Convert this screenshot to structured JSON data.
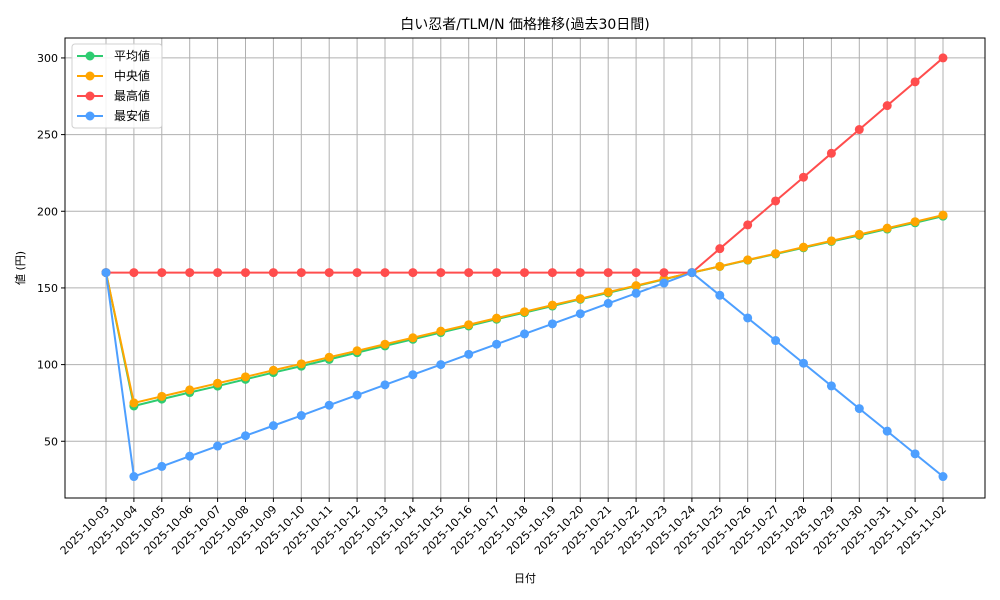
{
  "chart_data": {
    "type": "line",
    "title": "白い忍者/TLM/N 価格推移(過去30日間)",
    "xlabel": "日付",
    "ylabel": "値 (円)",
    "ylim": [
      13,
      313
    ],
    "yticks": [
      50,
      100,
      150,
      200,
      250,
      300
    ],
    "grid": true,
    "legend_position": "upper left",
    "categories": [
      "2025-10-03",
      "2025-10-04",
      "2025-10-05",
      "2025-10-06",
      "2025-10-07",
      "2025-10-08",
      "2025-10-09",
      "2025-10-10",
      "2025-10-11",
      "2025-10-12",
      "2025-10-13",
      "2025-10-14",
      "2025-10-15",
      "2025-10-16",
      "2025-10-17",
      "2025-10-18",
      "2025-10-19",
      "2025-10-20",
      "2025-10-21",
      "2025-10-22",
      "2025-10-23",
      "2025-10-24",
      "2025-10-25",
      "2025-10-26",
      "2025-10-27",
      "2025-10-28",
      "2025-10-29",
      "2025-10-30",
      "2025-10-31",
      "2025-11-01",
      "2025-11-02"
    ],
    "series": [
      {
        "name": "平均値",
        "color": "#2ecc71",
        "values": [
          160,
          73,
          77.5,
          81.8,
          86,
          90.4,
          94.8,
          99,
          103.4,
          107.8,
          112.2,
          116.5,
          120.9,
          125.2,
          129.6,
          133.9,
          138.2,
          142.6,
          146.8,
          151.2,
          155.6,
          160,
          164,
          168.1,
          172.1,
          176.2,
          180.3,
          184.3,
          188.4,
          192.5,
          196.8
        ]
      },
      {
        "name": "中央値",
        "color": "#ffa500",
        "values": [
          160,
          75,
          79.3,
          83.5,
          87.8,
          92,
          96.3,
          100.5,
          104.8,
          109,
          113.3,
          117.5,
          121.8,
          126,
          130.3,
          134.5,
          138.8,
          143,
          147.3,
          151.5,
          155.8,
          160,
          164.1,
          168.3,
          172.4,
          176.6,
          180.7,
          184.9,
          189,
          193.2,
          197.5
        ]
      },
      {
        "name": "最高値",
        "color": "#ff4d4d",
        "values": [
          160,
          160,
          160,
          160,
          160,
          160,
          160,
          160,
          160,
          160,
          160,
          160,
          160,
          160,
          160,
          160,
          160,
          160,
          160,
          160,
          160,
          160,
          175.6,
          191.1,
          206.7,
          222.2,
          237.8,
          253.3,
          268.9,
          284.4,
          300
        ]
      },
      {
        "name": "最安値",
        "color": "#4d9fff",
        "values": [
          160,
          27,
          33.6,
          40.3,
          46.9,
          53.6,
          60.2,
          66.8,
          73.5,
          80.1,
          86.8,
          93.4,
          100,
          106.7,
          113.3,
          120,
          126.6,
          133.2,
          139.9,
          146.5,
          153.2,
          160,
          145.2,
          130.4,
          115.7,
          100.9,
          86.1,
          71.3,
          56.6,
          41.8,
          27
        ]
      }
    ]
  }
}
